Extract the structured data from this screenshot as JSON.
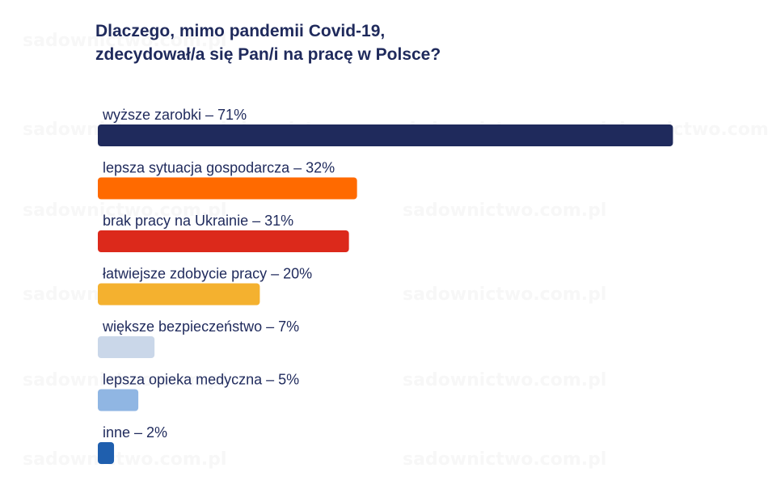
{
  "title": {
    "line1": "Dlaczego, mimo pandemii Covid-19,",
    "line2": "zdecydował/a się Pan/i na pracę w Polsce?"
  },
  "watermark": {
    "text": "sadownictwo.com.pl"
  },
  "chart_data": {
    "type": "bar",
    "orientation": "horizontal",
    "title": "Dlaczego, mimo pandemii Covid-19, zdecydował/a się Pan/i na pracę w Polsce?",
    "categories": [
      "wyższe zarobki –  71%",
      "lepsza sytuacja gospodarcza – 32%",
      "brak pracy na Ukrainie –  31%",
      "łatwiejsze zdobycie pracy –  20%",
      "większe bezpieczeństwo – 7%",
      "lepsza opieka medyczna – 5%",
      "inne – 2%"
    ],
    "values": [
      71,
      32,
      31,
      20,
      7,
      5,
      2
    ],
    "colors": [
      "#1f2a5c",
      "#ff6a00",
      "#dc291b",
      "#f4b12f",
      "#cad7e9",
      "#90b6e3",
      "#1f5fae"
    ],
    "unit": "%",
    "xlim": [
      0,
      100
    ],
    "grid": false,
    "legend": "none"
  }
}
